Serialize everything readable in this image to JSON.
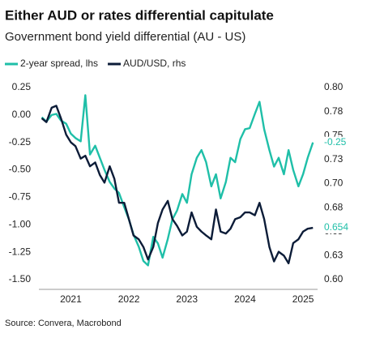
{
  "chart_data": {
    "type": "line",
    "title": "Either AUD or rates differential capitulate",
    "subtitle": "Government bond yield differential (AU - US)",
    "source": "Source: Convera, Macrobond",
    "legend": "top-left",
    "last_value_labels": true,
    "x": [
      2021.0,
      2021.08,
      2021.17,
      2021.25,
      2021.33,
      2021.42,
      2021.5,
      2021.58,
      2021.67,
      2021.75,
      2021.83,
      2021.92,
      2022.0,
      2022.08,
      2022.17,
      2022.25,
      2022.33,
      2022.42,
      2022.5,
      2022.58,
      2022.67,
      2022.75,
      2022.83,
      2022.92,
      2023.0,
      2023.08,
      2023.17,
      2023.25,
      2023.33,
      2023.42,
      2023.5,
      2023.58,
      2023.67,
      2023.75,
      2023.83,
      2023.92,
      2024.0,
      2024.08,
      2024.17,
      2024.25,
      2024.33,
      2024.42,
      2024.5,
      2024.58,
      2024.67,
      2024.75,
      2024.83,
      2024.92,
      2025.0,
      2025.08,
      2025.17,
      2025.25,
      2025.33,
      2025.42,
      2025.5,
      2025.58,
      2025.67
    ],
    "xlim": [
      2020.95,
      2025.75
    ],
    "xticks": [
      {
        "value": 2021.5,
        "label": "2021"
      },
      {
        "value": 2022.5,
        "label": "2022"
      },
      {
        "value": 2023.5,
        "label": "2023"
      },
      {
        "value": 2024.5,
        "label": "2024"
      },
      {
        "value": 2025.5,
        "label": "2025"
      }
    ],
    "ylim": [
      -1.5,
      0.25
    ],
    "yticks": [
      {
        "value": 0.25,
        "label": "0.25"
      },
      {
        "value": 0,
        "label": "0.00"
      },
      {
        "value": -0.25,
        "label": "-0.25"
      },
      {
        "value": -0.5,
        "label": "-0.50"
      },
      {
        "value": -0.75,
        "label": "-0.75"
      },
      {
        "value": -1,
        "label": "-1.00"
      },
      {
        "value": -1.25,
        "label": "-1.25"
      },
      {
        "value": -1.5,
        "label": "-1.50"
      }
    ],
    "y2lim": [
      0.6,
      0.8
    ],
    "y2ticks": [
      {
        "value": 0.8,
        "label": "0.80"
      },
      {
        "value": 0.775,
        "label": "0.78"
      },
      {
        "value": 0.75,
        "label": "0.75"
      },
      {
        "value": 0.725,
        "label": "0.73"
      },
      {
        "value": 0.7,
        "label": "0.70"
      },
      {
        "value": 0.675,
        "label": "0.68"
      },
      {
        "value": 0.65,
        "label": "0.65"
      },
      {
        "value": 0.625,
        "label": "0.63"
      },
      {
        "value": 0.6,
        "label": "0.60"
      }
    ],
    "series": [
      {
        "name": "2-year spread, lhs",
        "color": "#1fbfa8",
        "axis": "y",
        "values": [
          -0.02,
          -0.06,
          0.0,
          0.01,
          -0.05,
          -0.08,
          -0.17,
          -0.21,
          -0.24,
          0.18,
          -0.36,
          -0.28,
          -0.39,
          -0.5,
          -0.61,
          -0.67,
          -0.71,
          -0.84,
          -0.95,
          -1.09,
          -1.2,
          -1.33,
          -1.37,
          -1.11,
          -1.17,
          -1.3,
          -1.13,
          -0.95,
          -0.87,
          -0.72,
          -0.8,
          -0.54,
          -0.39,
          -0.32,
          -0.43,
          -0.65,
          -0.54,
          -0.76,
          -0.61,
          -0.39,
          -0.43,
          -0.22,
          -0.13,
          -0.12,
          0.01,
          0.12,
          -0.13,
          -0.32,
          -0.47,
          -0.39,
          -0.54,
          -0.32,
          -0.5,
          -0.65,
          -0.54,
          -0.39,
          -0.25
        ]
      },
      {
        "name": "AUD/USD, rhs",
        "color": "#0c1c38",
        "axis": "y2",
        "values": [
          0.768,
          0.764,
          0.779,
          0.781,
          0.768,
          0.751,
          0.743,
          0.739,
          0.726,
          0.729,
          0.718,
          0.722,
          0.709,
          0.701,
          0.718,
          0.705,
          0.68,
          0.68,
          0.663,
          0.646,
          0.642,
          0.634,
          0.621,
          0.634,
          0.659,
          0.673,
          0.682,
          0.663,
          0.656,
          0.646,
          0.65,
          0.67,
          0.655,
          0.65,
          0.646,
          0.642,
          0.673,
          0.65,
          0.648,
          0.653,
          0.663,
          0.665,
          0.67,
          0.67,
          0.667,
          0.68,
          0.663,
          0.634,
          0.619,
          0.629,
          0.625,
          0.617,
          0.638,
          0.642,
          0.65,
          0.653,
          0.654
        ]
      }
    ]
  }
}
